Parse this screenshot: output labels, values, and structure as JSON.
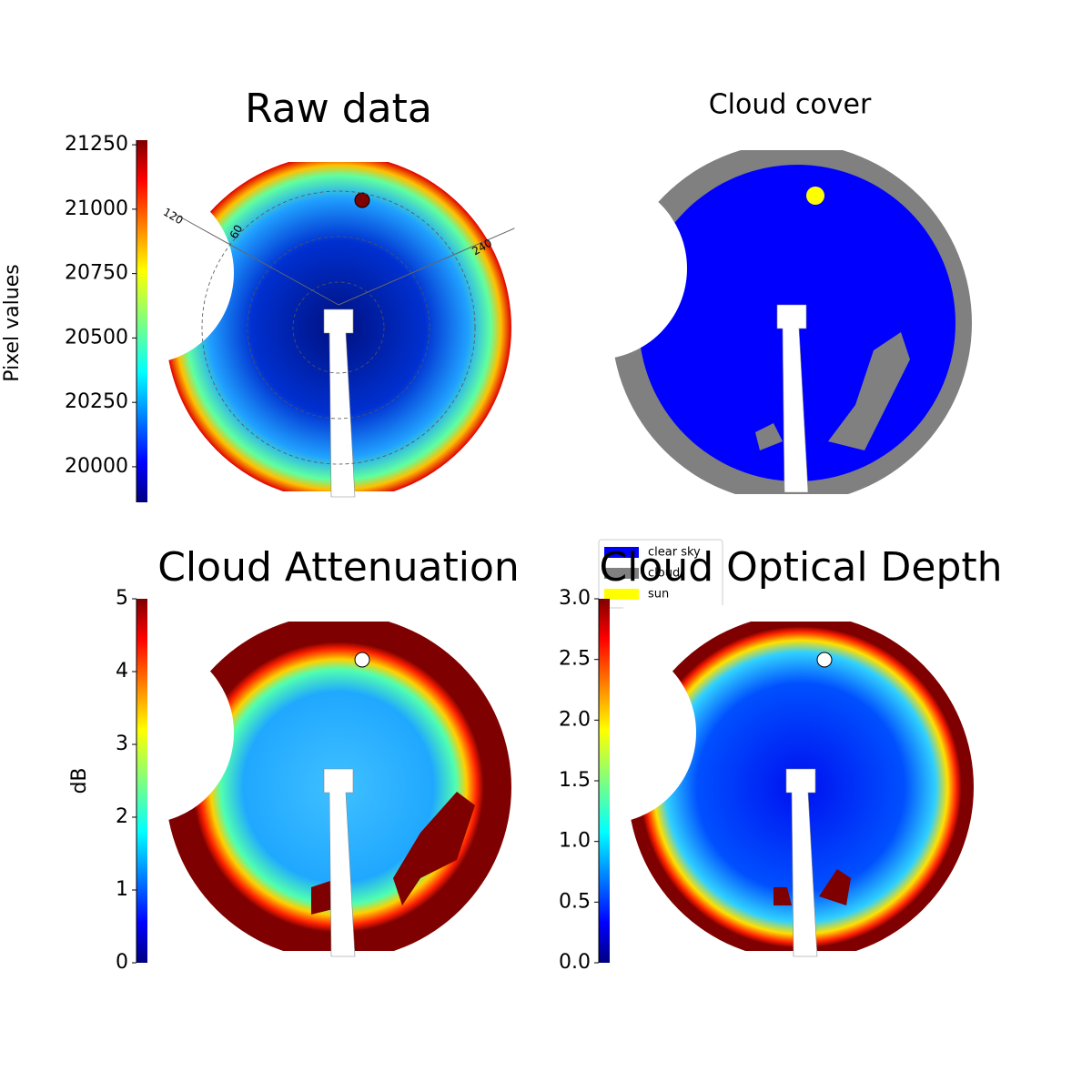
{
  "chart_data": [
    {
      "type": "image",
      "title": "Raw data",
      "colorbar_label": "Pixel values",
      "ylim": [
        19862,
        21268
      ],
      "yticks": [
        20000,
        20250,
        20500,
        20750,
        21000,
        21250
      ],
      "polar_labels": [
        "120",
        "60",
        "240"
      ]
    },
    {
      "type": "image",
      "title": "Cloud cover",
      "legend": [
        {
          "name": "clear sky",
          "color": "#0000ff"
        },
        {
          "name": "cloud",
          "color": "#808080"
        },
        {
          "name": "sun",
          "color": "#ffff00"
        }
      ]
    },
    {
      "type": "image",
      "title": "Cloud Attenuation",
      "colorbar_label": "dB",
      "ylim": [
        0,
        5
      ],
      "yticks": [
        0,
        1,
        2,
        3,
        4,
        5
      ]
    },
    {
      "type": "image",
      "title": "Cloud Optical Depth",
      "ylim": [
        0,
        3
      ],
      "yticks": [
        {
          "value": 0,
          "label": "0.0"
        },
        0.5,
        {
          "value": 1,
          "label": "1.0"
        },
        1.5,
        {
          "value": 2,
          "label": "2.0"
        },
        2.5,
        {
          "value": 3,
          "label": "3.0"
        }
      ]
    }
  ]
}
